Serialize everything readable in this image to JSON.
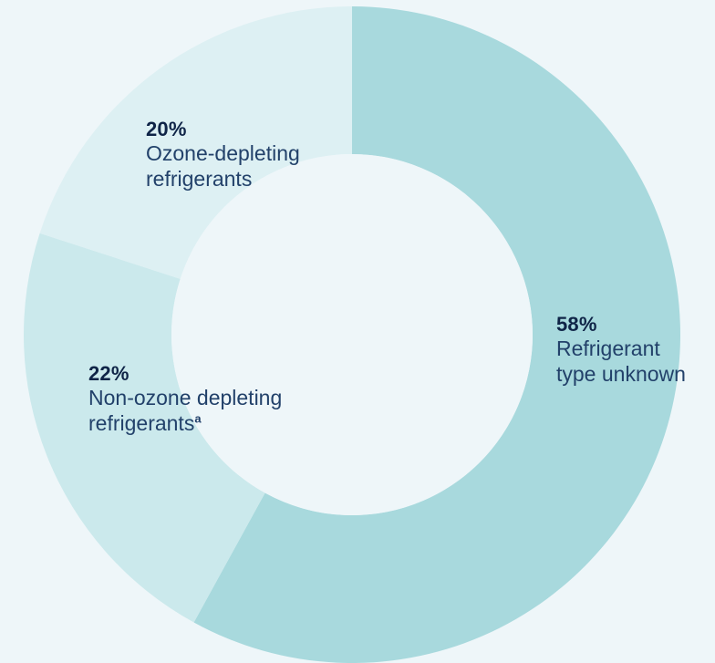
{
  "chart_data": {
    "type": "pie",
    "donut": true,
    "slices": [
      {
        "label": "58%",
        "text_lines": [
          "Refrigerant",
          "type unknown"
        ],
        "superscript": "",
        "value": 58,
        "color": "#a8d9dd"
      },
      {
        "label": "22%",
        "text_lines": [
          "Non-ozone depleting",
          "refrigerants"
        ],
        "superscript": "a",
        "value": 22,
        "color": "#cbe9ec"
      },
      {
        "label": "20%",
        "text_lines": [
          "Ozone-depleting",
          "refrigerants"
        ],
        "superscript": "",
        "value": 20,
        "color": "#ddf0f3"
      }
    ],
    "center_color": "#eef6f9",
    "start_angle_deg": 0,
    "direction": "clockwise"
  }
}
